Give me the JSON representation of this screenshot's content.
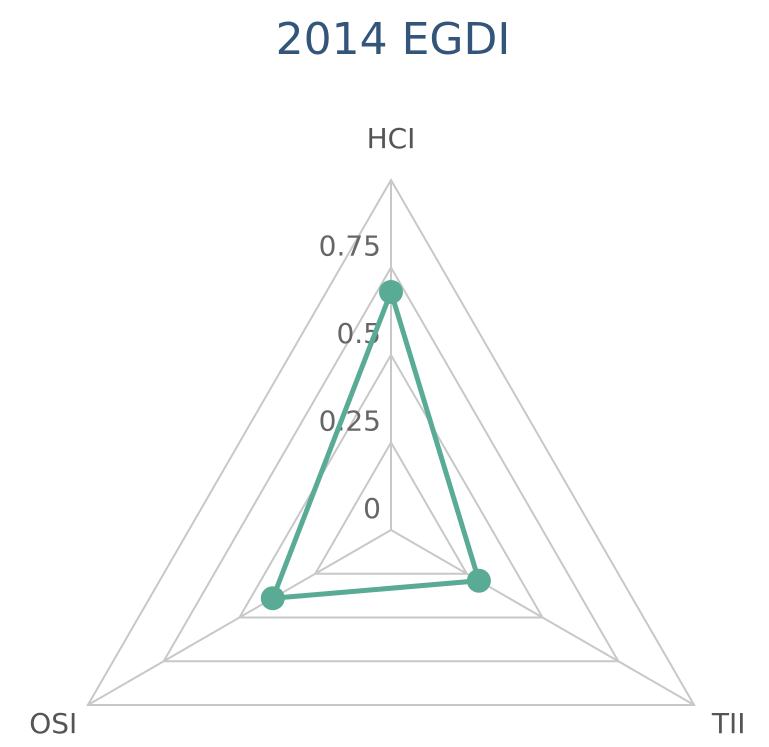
{
  "chart_data": {
    "type": "radar",
    "title": "2014 EGDI",
    "categories": [
      "HCI",
      "TII",
      "OSI"
    ],
    "values": [
      0.68,
      0.29,
      0.39
    ],
    "color": "#5aab96",
    "ylim": [
      0,
      1
    ],
    "yticks": [
      0,
      0.25,
      0.5,
      0.75
    ],
    "grid": true
  }
}
